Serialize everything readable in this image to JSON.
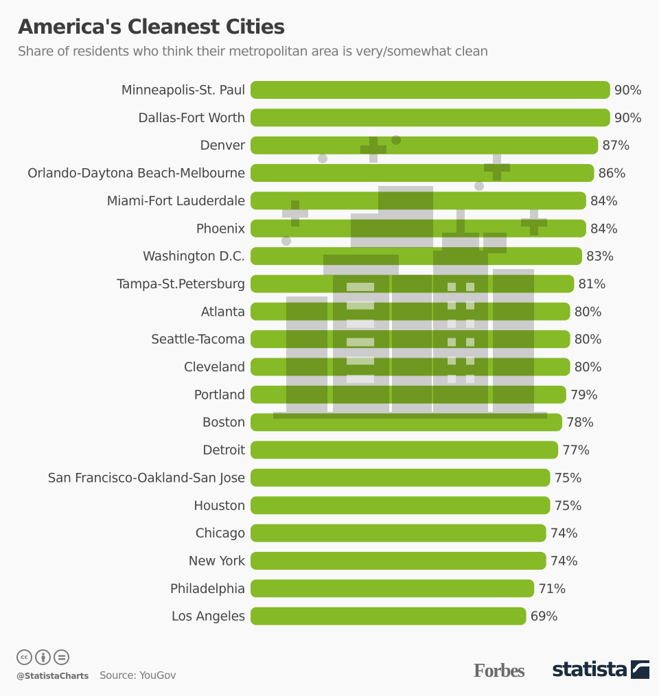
{
  "header": {
    "title": "America's Cleanest Cities",
    "subtitle": "Share of residents who think their metropolitan area is very/somewhat clean"
  },
  "colors": {
    "bar": "#86ba26",
    "background": "#f9f9f9",
    "text": "#454545",
    "illustration_gray": "#d3d3d3",
    "statista_navy": "#1b2c3e"
  },
  "chart_data": {
    "type": "bar",
    "orientation": "horizontal",
    "title": "America's Cleanest Cities",
    "subtitle": "Share of residents who think their metropolitan area is very/somewhat clean",
    "xlabel": "",
    "ylabel": "",
    "xlim": [
      0,
      90
    ],
    "grid": false,
    "legend": "none",
    "unit": "%",
    "categories": [
      "Minneapolis-St. Paul",
      "Dallas-Fort Worth",
      "Denver",
      "Orlando-Daytona Beach-Melbourne",
      "Miami-Fort Lauderdale",
      "Phoenix",
      "Washington D.C.",
      "Tampa-St.Petersburg",
      "Atlanta",
      "Seattle-Tacoma",
      "Cleveland",
      "Portland",
      "Boston",
      "Detroit",
      "San Francisco-Oakland-San Jose",
      "Houston",
      "Chicago",
      "New York",
      "Philadelphia",
      "Los Angeles"
    ],
    "values": [
      90,
      90,
      87,
      86,
      84,
      84,
      83,
      81,
      80,
      80,
      80,
      79,
      78,
      77,
      75,
      75,
      74,
      74,
      71,
      69
    ],
    "value_labels": [
      "90%",
      "90%",
      "87%",
      "86%",
      "84%",
      "84%",
      "83%",
      "81%",
      "80%",
      "80%",
      "80%",
      "79%",
      "78%",
      "77%",
      "75%",
      "75%",
      "74%",
      "74%",
      "71%",
      "69%"
    ]
  },
  "decoration": {
    "icon": "city-skyline-illustration"
  },
  "footer": {
    "license_icons": [
      "cc-icon",
      "by-icon",
      "nd-icon"
    ],
    "cc_text": "cc",
    "handle": "@StatistaCharts",
    "source": "Source: YouGov",
    "partner_logo": "Forbes",
    "brand_logo": "statista"
  }
}
